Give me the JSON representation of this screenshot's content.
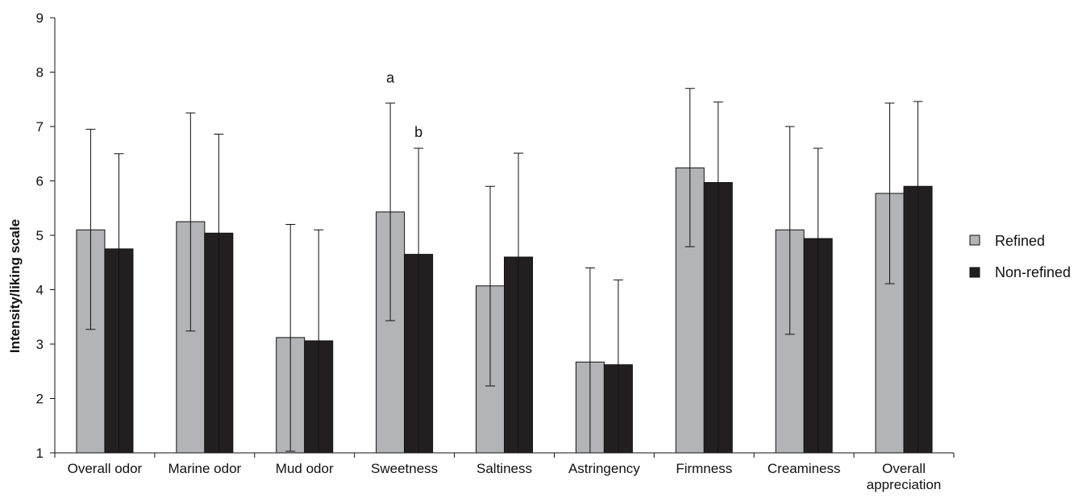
{
  "chart_data": {
    "type": "bar",
    "title": "",
    "xlabel": "",
    "ylabel": "Intensity/liking scale",
    "ylim": [
      1,
      9
    ],
    "yticks": [
      1,
      2,
      3,
      4,
      5,
      6,
      7,
      8,
      9
    ],
    "grid": false,
    "legend_position": "right",
    "categories": [
      "Overall odor",
      "Marine odor",
      "Mud odor",
      "Sweetness",
      "Saltiness",
      "Astringency",
      "Firmness",
      "Creaminess",
      "Overall appreciation"
    ],
    "series": [
      {
        "name": "Refined",
        "color": "#b3b4b7",
        "values": [
          5.1,
          5.25,
          3.12,
          5.43,
          4.07,
          2.67,
          6.24,
          5.1,
          5.77
        ],
        "error_upper": [
          6.95,
          7.25,
          5.2,
          7.43,
          5.9,
          4.4,
          7.7,
          7.0,
          7.43
        ],
        "error_lower": [
          3.27,
          3.24,
          1.03,
          3.43,
          2.23,
          1.0,
          4.79,
          3.18,
          4.11
        ]
      },
      {
        "name": "Non-refined",
        "color": "#231f20",
        "values": [
          4.75,
          5.04,
          3.06,
          4.65,
          4.6,
          2.62,
          5.97,
          4.94,
          5.9
        ],
        "error_upper": [
          6.5,
          6.86,
          5.1,
          6.6,
          6.51,
          4.18,
          7.45,
          6.6,
          7.46
        ],
        "error_lower": [
          1.0,
          1.0,
          1.0,
          1.0,
          1.0,
          1.0,
          1.0,
          1.0,
          1.0
        ]
      }
    ],
    "annotations": [
      {
        "text": "a",
        "category": "Sweetness",
        "series": "Refined",
        "y": 7.9
      },
      {
        "text": "b",
        "category": "Sweetness",
        "series": "Non-refined",
        "y": 6.9
      }
    ]
  }
}
